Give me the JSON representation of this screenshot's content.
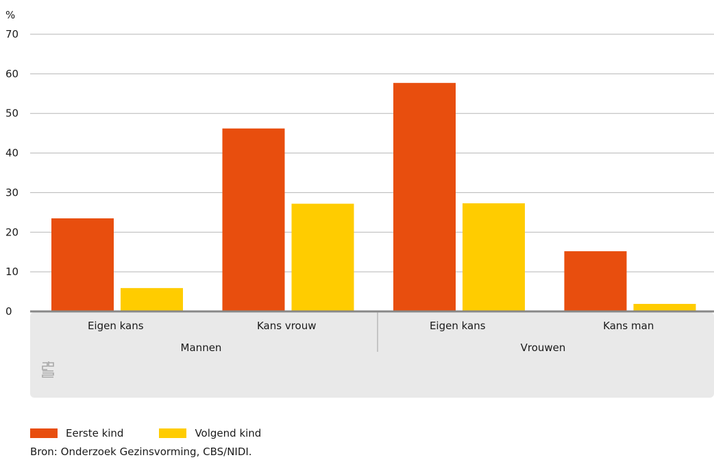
{
  "chart_data": {
    "type": "bar",
    "ylabel": "%",
    "ylim": [
      0,
      70
    ],
    "yticks": [
      0,
      10,
      20,
      30,
      40,
      50,
      60,
      70
    ],
    "grid": true,
    "groups": [
      {
        "label": "Mannen",
        "categories": [
          "Eigen kans",
          "Kans vrouw"
        ]
      },
      {
        "label": "Vrouwen",
        "categories": [
          "Eigen kans",
          "Kans man"
        ]
      }
    ],
    "categories": [
      "Eigen kans",
      "Kans vrouw",
      "Eigen kans",
      "Kans man"
    ],
    "series": [
      {
        "name": "Eerste kind",
        "color": "#e84e0e",
        "values": [
          23.5,
          46.2,
          57.7,
          15.2
        ]
      },
      {
        "name": "Volgend kind",
        "color": "#ffcc00",
        "values": [
          5.9,
          27.2,
          27.3,
          1.9
        ]
      }
    ],
    "legend_position": "bottom-left"
  },
  "logo": {
    "name": "cbs-logo-icon"
  },
  "source": "Bron: Onderzoek Gezinsvorming, CBS/NIDI."
}
